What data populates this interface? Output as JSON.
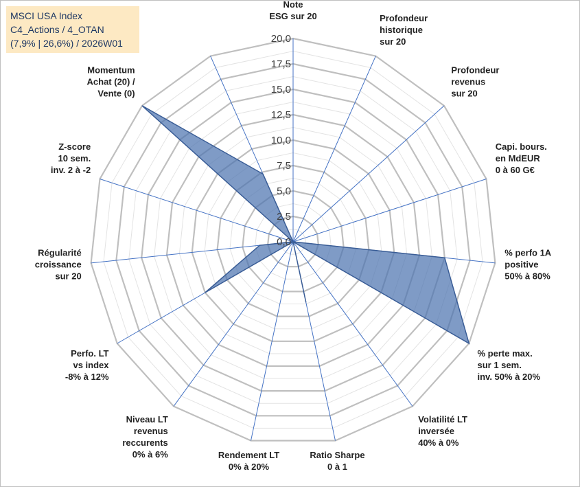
{
  "header": {
    "lines": [
      "MSCI USA Index",
      "C4_Actions / 4_OTAN",
      "(7,9% | 26,6%) / 2026W01"
    ]
  },
  "colors": {
    "fill": "#4e74b0",
    "stroke": "#3a5d96",
    "axis": "#4472c4",
    "ring_major": "#bfbfbf",
    "ring_minor": "#e3e3e3",
    "title_bg": "#fde9c3"
  },
  "chart_data": {
    "type": "radar",
    "title": "",
    "scale": {
      "min": 0,
      "max": 20,
      "major_step": 2.5,
      "minor_step": 1.25
    },
    "tick_labels": [
      "0,0",
      "2,5",
      "5,0",
      "7,5",
      "10,0",
      "12,5",
      "15,0",
      "17,5",
      "20,0"
    ],
    "grid": true,
    "axes": [
      {
        "label": [
          "Note",
          "ESG sur 20"
        ],
        "value": 0
      },
      {
        "label": [
          "Profondeur",
          "historique",
          "sur 20"
        ],
        "value": 0
      },
      {
        "label": [
          "Profondeur",
          "revenus",
          "sur 20"
        ],
        "value": 0
      },
      {
        "label": [
          "Capi. bours.",
          "en MdEUR",
          "0 à 60 G€"
        ],
        "value": 0
      },
      {
        "label": [
          "% perfo 1A",
          "positive",
          "50% à 80%"
        ],
        "value": 15
      },
      {
        "label": [
          "% perte max.",
          "sur 1 sem.",
          "inv. 50% à 20%"
        ],
        "value": 20
      },
      {
        "label": [
          "Volatilité LT",
          "inversée",
          "40% à 0%"
        ],
        "value": 0
      },
      {
        "label": [
          "Ratio Sharpe",
          "0 à 1"
        ],
        "value": 6.1
      },
      {
        "label": [
          "Rendement LT",
          "0% à 20%"
        ],
        "value": 0
      },
      {
        "label": [
          "Niveau LT",
          "revenus",
          "reccurents",
          "0% à 6%"
        ],
        "value": 0
      },
      {
        "label": [
          "Perfo. LT",
          "vs index",
          "-8% à 12%"
        ],
        "value": 10
      },
      {
        "label": [
          "Régularité",
          "croissance",
          "sur 20"
        ],
        "value": 3.3
      },
      {
        "label": [
          "Z-score",
          "10 sem.",
          "inv. 2 à -2"
        ],
        "value": 0
      },
      {
        "label": [
          "Momentum",
          "Achat (20) /",
          "Vente (0)"
        ],
        "value": 20
      },
      {
        "label": [],
        "value": 7.3
      }
    ]
  }
}
